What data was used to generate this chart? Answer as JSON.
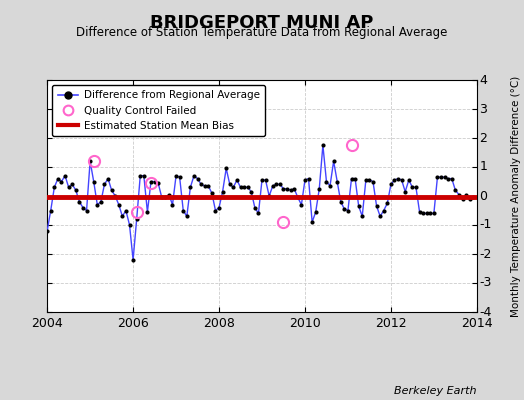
{
  "title": "BRIDGEPORT MUNI AP",
  "subtitle": "Difference of Station Temperature Data from Regional Average",
  "ylabel": "Monthly Temperature Anomaly Difference (°C)",
  "xlabel_bottom": "Berkeley Earth",
  "bg_color": "#d8d8d8",
  "plot_bg_color": "#ffffff",
  "ylim": [
    -4,
    4
  ],
  "xlim": [
    2004,
    2014
  ],
  "yticks": [
    -4,
    -3,
    -2,
    -1,
    0,
    1,
    2,
    3,
    4
  ],
  "xticks": [
    2004,
    2006,
    2008,
    2010,
    2012,
    2014
  ],
  "bias_line_y": -0.05,
  "bias_line_color": "#cc0000",
  "line_color": "#4444ff",
  "marker_color": "#000000",
  "qc_failed_color": "#ff66cc",
  "time_series_x": [
    2004.0,
    2004.083,
    2004.167,
    2004.25,
    2004.333,
    2004.417,
    2004.5,
    2004.583,
    2004.667,
    2004.75,
    2004.833,
    2004.917,
    2005.0,
    2005.083,
    2005.167,
    2005.25,
    2005.333,
    2005.417,
    2005.5,
    2005.583,
    2005.667,
    2005.75,
    2005.833,
    2005.917,
    2006.0,
    2006.083,
    2006.167,
    2006.25,
    2006.333,
    2006.417,
    2006.5,
    2006.583,
    2006.667,
    2006.75,
    2006.833,
    2006.917,
    2007.0,
    2007.083,
    2007.167,
    2007.25,
    2007.333,
    2007.417,
    2007.5,
    2007.583,
    2007.667,
    2007.75,
    2007.833,
    2007.917,
    2008.0,
    2008.083,
    2008.167,
    2008.25,
    2008.333,
    2008.417,
    2008.5,
    2008.583,
    2008.667,
    2008.75,
    2008.833,
    2008.917,
    2009.0,
    2009.083,
    2009.167,
    2009.25,
    2009.333,
    2009.417,
    2009.5,
    2009.583,
    2009.667,
    2009.75,
    2009.833,
    2009.917,
    2010.0,
    2010.083,
    2010.167,
    2010.25,
    2010.333,
    2010.417,
    2010.5,
    2010.583,
    2010.667,
    2010.75,
    2010.833,
    2010.917,
    2011.0,
    2011.083,
    2011.167,
    2011.25,
    2011.333,
    2011.417,
    2011.5,
    2011.583,
    2011.667,
    2011.75,
    2011.833,
    2011.917,
    2012.0,
    2012.083,
    2012.167,
    2012.25,
    2012.333,
    2012.417,
    2012.5,
    2012.583,
    2012.667,
    2012.75,
    2012.833,
    2012.917,
    2013.0,
    2013.083,
    2013.167,
    2013.25,
    2013.333,
    2013.417,
    2013.5,
    2013.583,
    2013.667,
    2013.75,
    2013.833,
    2013.917
  ],
  "time_series_y": [
    -1.2,
    -0.5,
    0.3,
    0.6,
    0.5,
    0.7,
    0.3,
    0.4,
    0.2,
    -0.2,
    -0.4,
    -0.5,
    1.2,
    0.5,
    -0.3,
    -0.2,
    0.4,
    0.6,
    0.2,
    0.0,
    -0.3,
    -0.7,
    -0.5,
    -1.0,
    -2.2,
    -0.8,
    0.7,
    0.7,
    -0.55,
    0.5,
    0.5,
    0.45,
    -0.05,
    -0.05,
    0.05,
    -0.3,
    0.7,
    0.65,
    -0.5,
    -0.7,
    0.3,
    0.7,
    0.6,
    0.4,
    0.35,
    0.35,
    0.1,
    -0.5,
    -0.4,
    0.15,
    0.95,
    0.4,
    0.3,
    0.55,
    0.3,
    0.3,
    0.3,
    0.15,
    -0.4,
    -0.6,
    0.55,
    0.55,
    0.0,
    0.35,
    0.4,
    0.4,
    0.25,
    0.25,
    0.2,
    0.25,
    -0.05,
    -0.3,
    0.55,
    0.6,
    -0.9,
    -0.55,
    0.25,
    1.75,
    0.5,
    0.35,
    1.2,
    0.5,
    -0.2,
    -0.45,
    -0.5,
    0.6,
    0.6,
    -0.35,
    -0.7,
    0.55,
    0.55,
    0.5,
    -0.35,
    -0.7,
    -0.5,
    -0.25,
    0.4,
    0.55,
    0.6,
    0.55,
    0.15,
    0.55,
    0.3,
    0.3,
    -0.55,
    -0.6,
    -0.6,
    -0.6,
    -0.6,
    0.65,
    0.65,
    0.65,
    0.6,
    0.6,
    0.2,
    0.05,
    -0.1,
    0.05,
    -0.1,
    -0.05
  ],
  "qc_failed_points": [
    [
      2005.083,
      1.2
    ],
    [
      2006.083,
      -0.55
    ],
    [
      2006.417,
      0.45
    ],
    [
      2009.5,
      -0.9
    ],
    [
      2011.083,
      1.75
    ]
  ]
}
